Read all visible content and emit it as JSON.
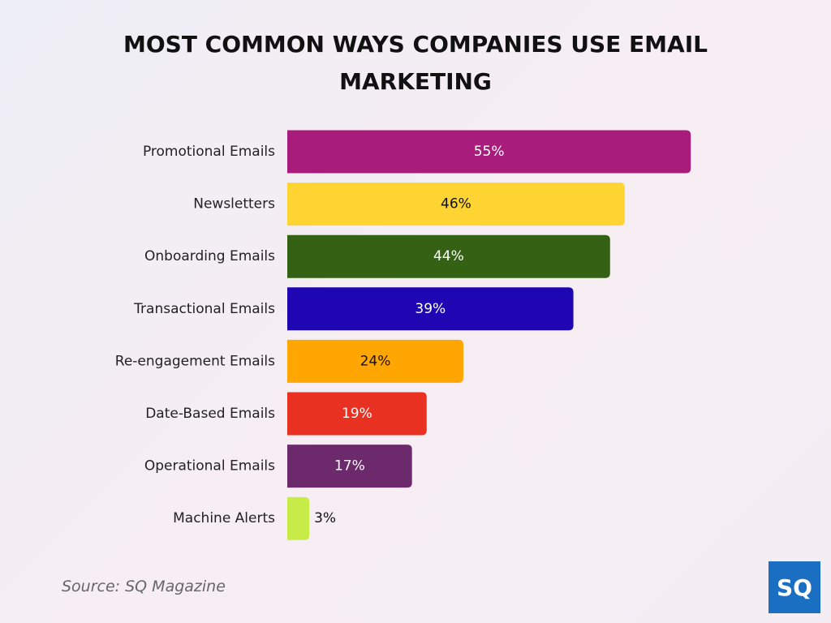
{
  "chart_data": {
    "type": "bar",
    "orientation": "horizontal",
    "title": "MOST COMMON WAYS COMPANIES USE EMAIL MARKETING",
    "categories": [
      "Promotional Emails",
      "Newsletters",
      "Onboarding Emails",
      "Transactional Emails",
      "Re-engagement Emails",
      "Date-Based Emails",
      "Operational Emails",
      "Machine Alerts"
    ],
    "values": [
      55,
      46,
      44,
      39,
      24,
      19,
      17,
      3
    ],
    "value_labels": [
      "55%",
      "46%",
      "44%",
      "39%",
      "24%",
      "19%",
      "17%",
      "3%"
    ],
    "colors": [
      "#a81d7b",
      "#fdd431",
      "#346114",
      "#1e07b2",
      "#ffa602",
      "#e83121",
      "#6c296c",
      "#c7eb47"
    ],
    "source": "Source: SQ Magazine",
    "logo": "SQ"
  }
}
